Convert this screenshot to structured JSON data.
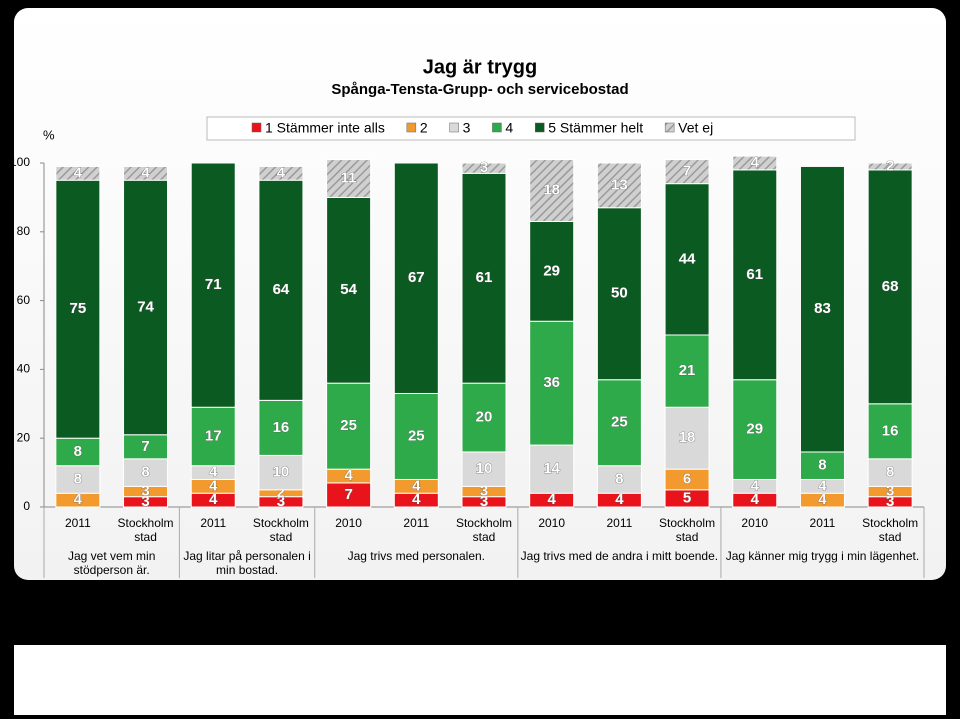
{
  "chart_data": {
    "type": "stacked_bar",
    "title": "Jag är trygg",
    "subtitle": "Spånga-Tensta-Grupp- och servicebostad",
    "y_label": "%",
    "groups": [
      {
        "label": "Jag vet vem min stödperson är.",
        "categories": [
          "2011",
          "Stockholm stad"
        ]
      },
      {
        "label": "Jag litar på personalen i min bostad.",
        "categories": [
          "2011",
          "Stockholm stad"
        ]
      },
      {
        "label": "Jag trivs med personalen.",
        "categories": [
          "2010",
          "2011",
          "Stockholm stad"
        ]
      },
      {
        "label": "Jag trivs med de andra i mitt boende.",
        "categories": [
          "2010",
          "2011",
          "Stockholm stad"
        ]
      },
      {
        "label": "Jag känner mig trygg i min lägenhet.",
        "categories": [
          "2010",
          "2011",
          "Stockholm stad"
        ]
      }
    ],
    "series": [
      {
        "name": "1 Stämmer inte alls",
        "color": "#e8131b",
        "values": [
          null,
          3,
          4,
          3,
          7,
          4,
          3,
          4,
          4,
          5,
          4,
          null,
          3
        ]
      },
      {
        "name": "2",
        "color": "#f39a2e",
        "values": [
          4,
          3,
          4,
          2,
          4,
          4,
          3,
          null,
          null,
          6,
          null,
          4,
          3
        ]
      },
      {
        "name": "3",
        "color": "#d9d9d9",
        "values": [
          8,
          8,
          4,
          10,
          null,
          null,
          10,
          14,
          8,
          18,
          4,
          4,
          8
        ]
      },
      {
        "name": "4",
        "color": "#2eaa4a",
        "values": [
          8,
          7,
          17,
          16,
          25,
          25,
          20,
          36,
          25,
          21,
          29,
          8,
          16
        ]
      },
      {
        "name": "5 Stämmer helt",
        "color": "#0b5a21",
        "values": [
          75,
          74,
          71,
          64,
          54,
          67,
          61,
          29,
          50,
          44,
          61,
          83,
          68
        ]
      },
      {
        "name": "Vet ej",
        "color": "#bfbfbf",
        "hatch": true,
        "values": [
          4,
          4,
          null,
          4,
          11,
          null,
          3,
          18,
          13,
          7,
          4,
          null,
          2
        ]
      }
    ],
    "ylim": [
      0,
      100
    ],
    "yticks": [
      0,
      20,
      40,
      60,
      80,
      100
    ],
    "grid": false
  }
}
